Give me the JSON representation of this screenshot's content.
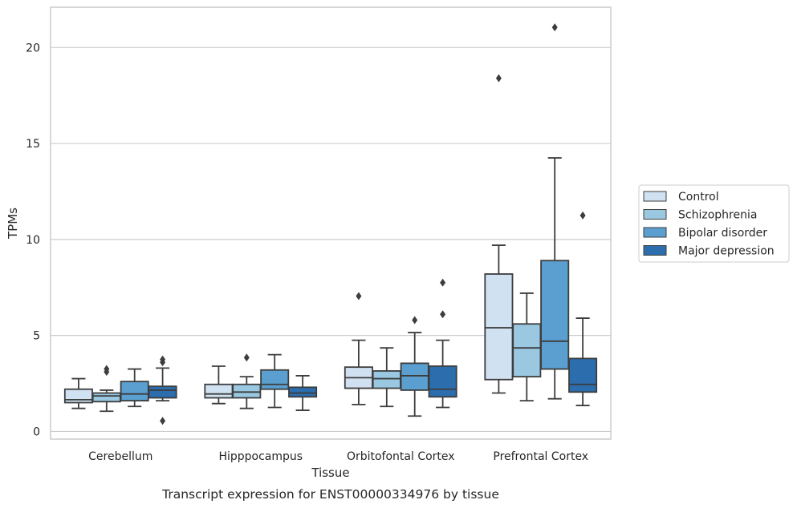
{
  "caption": "Transcript expression for ENST00000334976 by tissue",
  "chart_data": {
    "type": "box",
    "xlabel": "Tissue",
    "ylabel": "TPMs",
    "ylim": [
      -0.4,
      22.1
    ],
    "yticks": [
      0,
      5,
      10,
      15,
      20
    ],
    "grid": "horizontal",
    "legend_position": "right",
    "categories": [
      "Cerebellum",
      "Hipppocampus",
      "Orbitofontal Cortex",
      "Prefrontal Cortex"
    ],
    "series": [
      {
        "name": "Control",
        "color": "#d0e1f2",
        "boxes": [
          {
            "whislo": 1.2,
            "q1": 1.5,
            "med": 1.65,
            "q3": 2.2,
            "whishi": 2.75,
            "fliers": []
          },
          {
            "whislo": 1.45,
            "q1": 1.75,
            "med": 1.95,
            "q3": 2.45,
            "whishi": 3.4,
            "fliers": []
          },
          {
            "whislo": 1.4,
            "q1": 2.25,
            "med": 2.8,
            "q3": 3.35,
            "whishi": 4.75,
            "fliers": [
              7.05
            ]
          },
          {
            "whislo": 2.0,
            "q1": 2.7,
            "med": 5.4,
            "q3": 8.2,
            "whishi": 9.7,
            "fliers": [
              18.4
            ]
          }
        ]
      },
      {
        "name": "Schizophrenia",
        "color": "#9ac8e0",
        "boxes": [
          {
            "whislo": 1.05,
            "q1": 1.55,
            "med": 1.85,
            "q3": 2.0,
            "whishi": 2.15,
            "fliers": [
              3.1,
              3.25
            ]
          },
          {
            "whislo": 1.2,
            "q1": 1.75,
            "med": 2.05,
            "q3": 2.45,
            "whishi": 2.85,
            "fliers": [
              3.85
            ]
          },
          {
            "whislo": 1.3,
            "q1": 2.25,
            "med": 2.75,
            "q3": 3.15,
            "whishi": 4.35,
            "fliers": []
          },
          {
            "whislo": 1.6,
            "q1": 2.85,
            "med": 4.35,
            "q3": 5.6,
            "whishi": 7.2,
            "fliers": []
          }
        ]
      },
      {
        "name": "Bipolar disorder",
        "color": "#5a9fcf",
        "boxes": [
          {
            "whislo": 1.3,
            "q1": 1.6,
            "med": 1.95,
            "q3": 2.6,
            "whishi": 3.25,
            "fliers": []
          },
          {
            "whislo": 1.25,
            "q1": 2.2,
            "med": 2.45,
            "q3": 3.2,
            "whishi": 4.0,
            "fliers": []
          },
          {
            "whislo": 0.8,
            "q1": 2.15,
            "med": 2.9,
            "q3": 3.55,
            "whishi": 5.15,
            "fliers": [
              5.8
            ]
          },
          {
            "whislo": 1.7,
            "q1": 3.25,
            "med": 4.7,
            "q3": 8.9,
            "whishi": 14.25,
            "fliers": [
              21.05
            ]
          }
        ]
      },
      {
        "name": "Major depression",
        "color": "#2b6dad",
        "boxes": [
          {
            "whislo": 1.6,
            "q1": 1.75,
            "med": 2.15,
            "q3": 2.35,
            "whishi": 3.3,
            "fliers": [
              0.55,
              3.6,
              3.75
            ]
          },
          {
            "whislo": 1.1,
            "q1": 1.8,
            "med": 2.0,
            "q3": 2.3,
            "whishi": 2.9,
            "fliers": []
          },
          {
            "whislo": 1.25,
            "q1": 1.8,
            "med": 2.2,
            "q3": 3.4,
            "whishi": 4.75,
            "fliers": [
              6.1,
              7.75
            ]
          },
          {
            "whislo": 1.35,
            "q1": 2.05,
            "med": 2.45,
            "q3": 3.8,
            "whishi": 5.9,
            "fliers": [
              11.25
            ]
          }
        ]
      }
    ]
  }
}
